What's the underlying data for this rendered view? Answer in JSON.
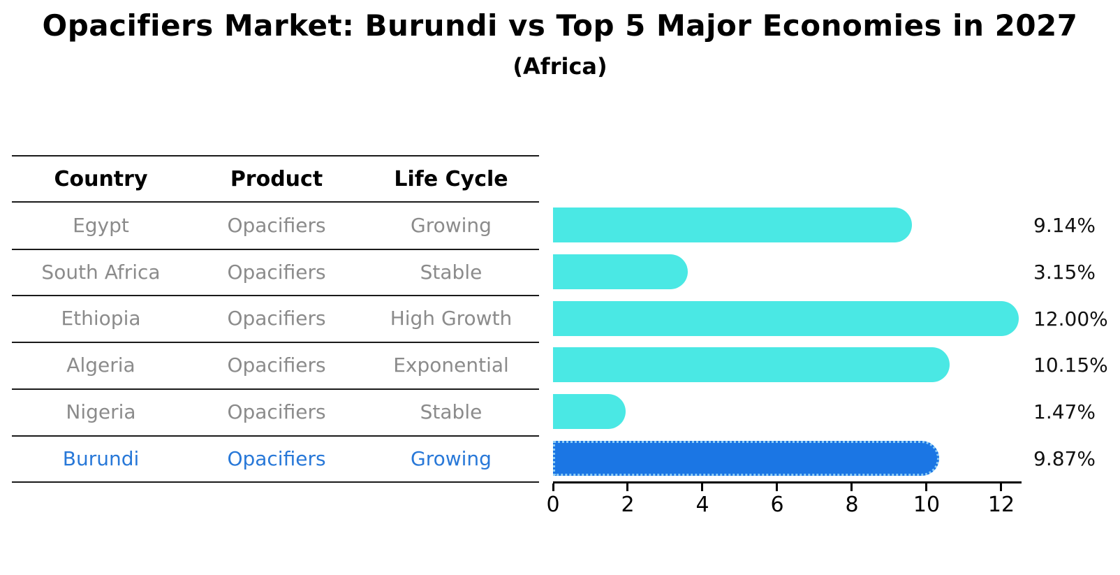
{
  "title": "Opacifiers Market: Burundi vs Top 5 Major Economies in 2027",
  "subtitle": "(Africa)",
  "table": {
    "headers": [
      "Country",
      "Product",
      "Life Cycle"
    ],
    "rows": [
      {
        "country": "Egypt",
        "product": "Opacifiers",
        "life_cycle": "Growing",
        "value": 9.14,
        "label": "9.14%",
        "highlight": false
      },
      {
        "country": "South Africa",
        "product": "Opacifiers",
        "life_cycle": "Stable",
        "value": 3.15,
        "label": "3.15%",
        "highlight": false
      },
      {
        "country": "Ethiopia",
        "product": "Opacifiers",
        "life_cycle": "High Growth",
        "value": 12.0,
        "label": "12.00%",
        "highlight": false
      },
      {
        "country": "Algeria",
        "product": "Opacifiers",
        "life_cycle": "Exponential",
        "value": 10.15,
        "label": "10.15%",
        "highlight": false
      },
      {
        "country": "Nigeria",
        "product": "Opacifiers",
        "life_cycle": "Stable",
        "value": 1.47,
        "label": "1.47%",
        "highlight": false
      },
      {
        "country": "Burundi",
        "product": "Opacifiers",
        "life_cycle": "Growing",
        "value": 9.87,
        "label": "9.87%",
        "highlight": true
      }
    ]
  },
  "chart_data": {
    "type": "bar",
    "orientation": "horizontal",
    "title": "Opacifiers Market: Burundi vs Top 5 Major Economies in 2027 (Africa)",
    "categories": [
      "Egypt",
      "South Africa",
      "Ethiopia",
      "Algeria",
      "Nigeria",
      "Burundi"
    ],
    "values": [
      9.14,
      3.15,
      12.0,
      10.15,
      1.47,
      9.87
    ],
    "value_labels": [
      "9.14%",
      "3.15%",
      "12.00%",
      "10.15%",
      "1.47%",
      "9.87%"
    ],
    "highlight_category": "Burundi",
    "xlabel": "",
    "ylabel": "",
    "xlim": [
      0,
      12.55
    ],
    "x_ticks": [
      0,
      2,
      4,
      6,
      8,
      10,
      12
    ],
    "grid": false,
    "legend": "none",
    "colors": {
      "bar": "#4ae8e4",
      "highlight_bar": "#1b76e4",
      "highlight_bar_border": "#8ecdf5",
      "row_text": "#8b8b8b",
      "highlight_text": "#2878d8",
      "header_text": "#000000",
      "value_label_text": "#111111",
      "axis": "#000000"
    }
  }
}
